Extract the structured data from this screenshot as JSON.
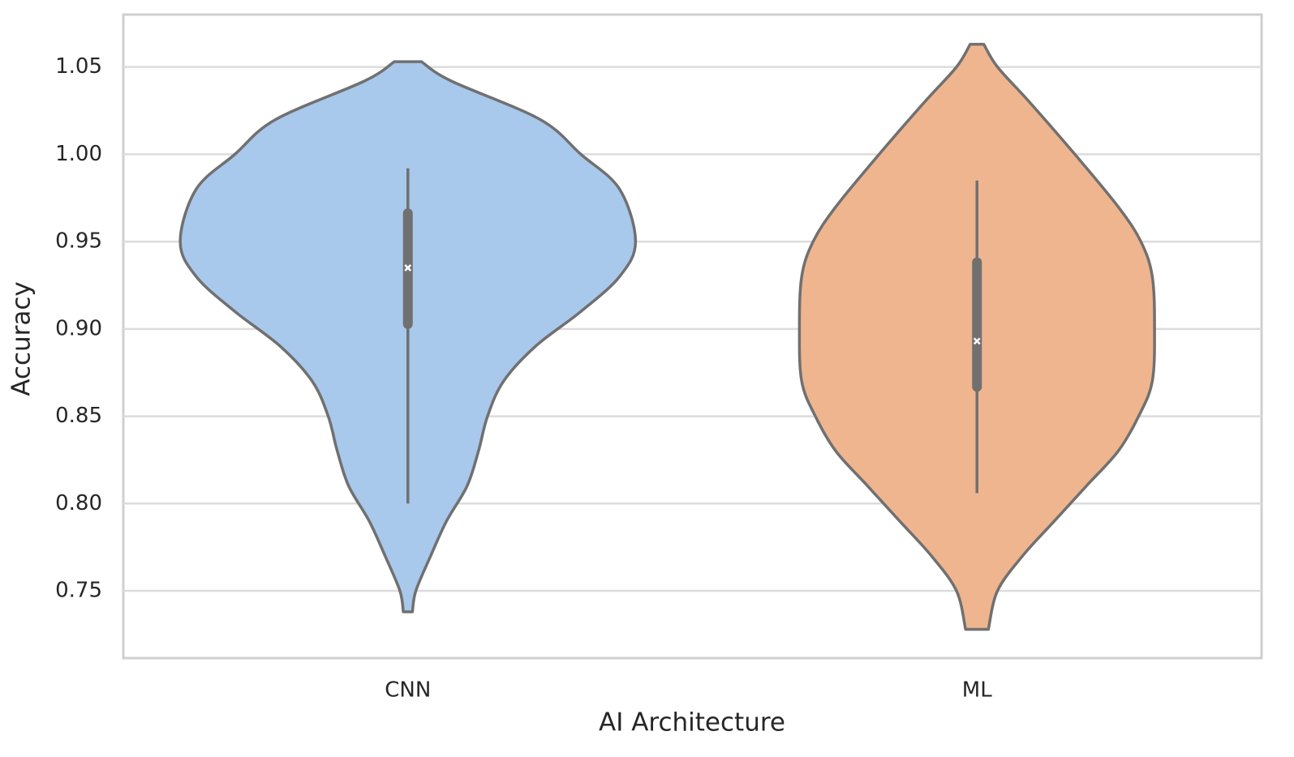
{
  "chart_data": {
    "type": "violin",
    "x_label": "AI Architecture",
    "y_label": "Accuracy",
    "categories": [
      "CNN",
      "ML"
    ],
    "ylim": [
      0.7115,
      1.08
    ],
    "yticks": [
      0.75,
      0.8,
      0.85,
      0.9,
      0.95,
      1.0,
      1.05
    ],
    "ytick_labels": [
      "0.75",
      "0.80",
      "0.85",
      "0.90",
      "0.95",
      "1.00",
      "1.05"
    ],
    "grid": true,
    "violins": [
      {
        "color": "#a8c8ec",
        "density_y": [
          1.053,
          1.042,
          1.02,
          1.0,
          0.98,
          0.95,
          0.93,
          0.91,
          0.89,
          0.87,
          0.85,
          0.83,
          0.81,
          0.79,
          0.77,
          0.75,
          0.738
        ],
        "density": [
          0.06,
          0.19,
          0.58,
          0.76,
          0.93,
          1.0,
          0.93,
          0.76,
          0.56,
          0.42,
          0.35,
          0.31,
          0.26,
          0.17,
          0.1,
          0.035,
          0.02
        ],
        "whisker": [
          0.8,
          0.992
        ],
        "box": [
          0.9,
          0.969
        ],
        "median": 0.935
      },
      {
        "color": "#efb58e",
        "density_y": [
          1.063,
          1.05,
          1.03,
          1.0,
          0.97,
          0.95,
          0.93,
          0.9,
          0.87,
          0.85,
          0.83,
          0.81,
          0.79,
          0.77,
          0.75,
          0.728
        ],
        "density": [
          0.03,
          0.09,
          0.23,
          0.43,
          0.62,
          0.72,
          0.77,
          0.78,
          0.77,
          0.71,
          0.62,
          0.48,
          0.34,
          0.2,
          0.09,
          0.05
        ],
        "whisker": [
          0.806,
          0.985
        ],
        "box": [
          0.864,
          0.941
        ],
        "median": 0.893
      }
    ]
  }
}
